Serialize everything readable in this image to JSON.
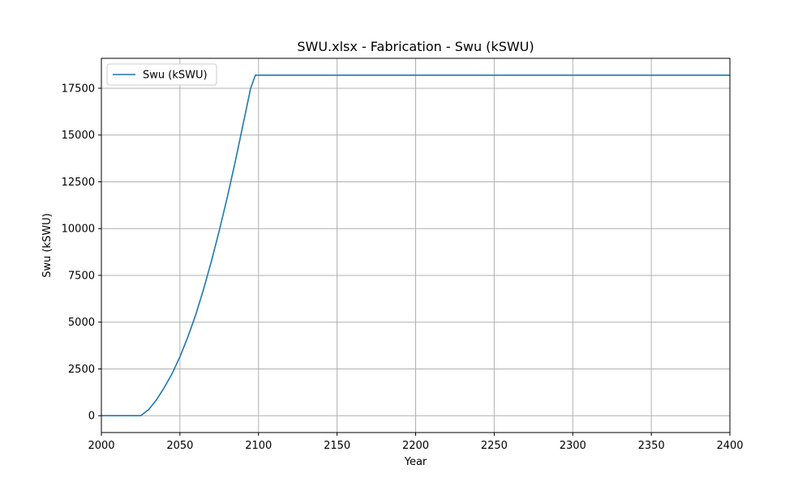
{
  "chart_data": {
    "type": "line",
    "title": "SWU.xlsx - Fabrication - Swu (kSWU)",
    "xlabel": "Year",
    "ylabel": "Swu (kSWU)",
    "xlim": [
      2000,
      2400
    ],
    "ylim": [
      -900,
      19100
    ],
    "x_ticks": [
      2000,
      2050,
      2100,
      2150,
      2200,
      2250,
      2300,
      2350,
      2400
    ],
    "y_ticks": [
      0,
      2500,
      5000,
      7500,
      10000,
      12500,
      15000,
      17500
    ],
    "grid": true,
    "legend_position": "upper-left",
    "series": [
      {
        "name": "Swu (kSWU)",
        "color": "#1f77b4",
        "x": [
          2000,
          2025,
          2030,
          2035,
          2040,
          2045,
          2050,
          2055,
          2060,
          2065,
          2070,
          2075,
          2080,
          2085,
          2090,
          2095,
          2098,
          2100,
          2150,
          2200,
          2250,
          2300,
          2350,
          2400
        ],
        "y": [
          0,
          0,
          320,
          840,
          1500,
          2250,
          3150,
          4200,
          5380,
          6750,
          8250,
          9880,
          11630,
          13500,
          15500,
          17500,
          18200,
          18200,
          18200,
          18200,
          18200,
          18200,
          18200,
          18200
        ]
      }
    ]
  }
}
